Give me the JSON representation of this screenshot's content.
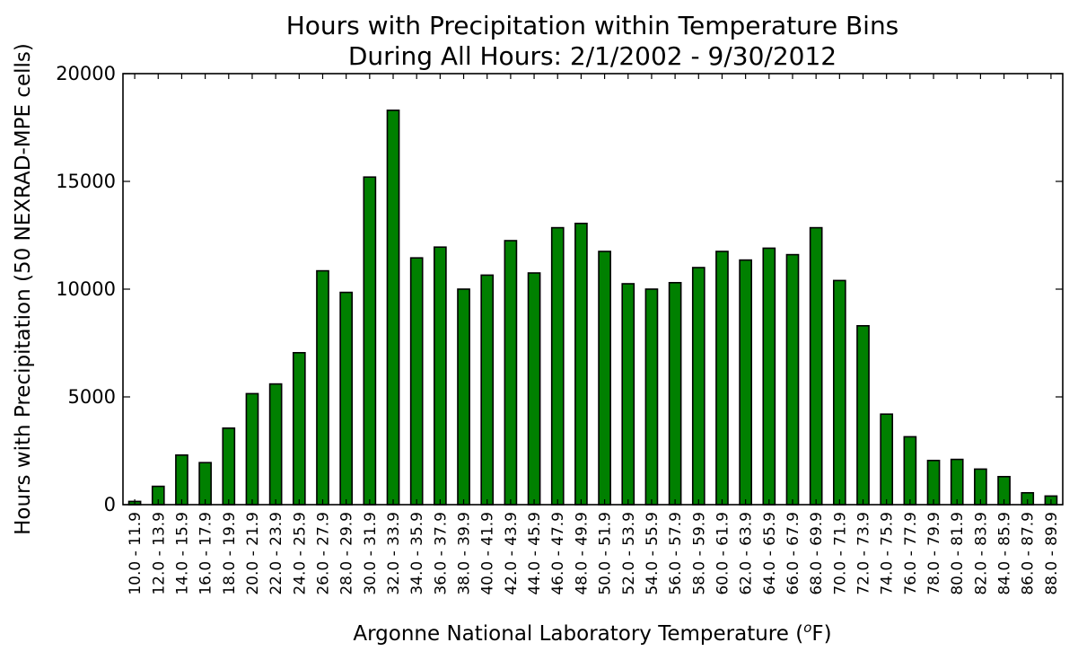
{
  "chart_data": {
    "type": "bar",
    "title": "Hours with Precipitation within Temperature Bins",
    "subtitle": "During All Hours: 2/1/2002 - 9/30/2012",
    "xlabel_text": "Argonne National Laboratory Temperature (",
    "xlabel_sup": "o",
    "xlabel_unit": "F)",
    "ylabel": "Hours with Precipitation (50 NEXRAD-MPE cells)",
    "ylim": [
      0,
      20000
    ],
    "yticks": [
      0,
      5000,
      10000,
      15000,
      20000
    ],
    "bar_color": "#008000",
    "grid": false,
    "categories": [
      "10.0 - 11.9",
      "12.0 - 13.9",
      "14.0 - 15.9",
      "16.0 - 17.9",
      "18.0 - 19.9",
      "20.0 - 21.9",
      "22.0 - 23.9",
      "24.0 - 25.9",
      "26.0 - 27.9",
      "28.0 - 29.9",
      "30.0 - 31.9",
      "32.0 - 33.9",
      "34.0 - 35.9",
      "36.0 - 37.9",
      "38.0 - 39.9",
      "40.0 - 41.9",
      "42.0 - 43.9",
      "44.0 - 45.9",
      "46.0 - 47.9",
      "48.0 - 49.9",
      "50.0 - 51.9",
      "52.0 - 53.9",
      "54.0 - 55.9",
      "56.0 - 57.9",
      "58.0 - 59.9",
      "60.0 - 61.9",
      "62.0 - 63.9",
      "64.0 - 65.9",
      "66.0 - 67.9",
      "68.0 - 69.9",
      "70.0 - 71.9",
      "72.0 - 73.9",
      "74.0 - 75.9",
      "76.0 - 77.9",
      "78.0 - 79.9",
      "80.0 - 81.9",
      "82.0 - 83.9",
      "84.0 - 85.9",
      "86.0 - 87.9",
      "88.0 - 89.9"
    ],
    "values": [
      150,
      850,
      2300,
      1950,
      3550,
      5150,
      5600,
      7050,
      10850,
      9850,
      15200,
      18300,
      11450,
      11950,
      10000,
      10650,
      12250,
      10750,
      12850,
      13050,
      11750,
      10250,
      10000,
      10300,
      11000,
      11750,
      11350,
      11900,
      11600,
      12850,
      10400,
      8300,
      4200,
      3150,
      2050,
      2100,
      1650,
      1300,
      550,
      400
    ]
  }
}
